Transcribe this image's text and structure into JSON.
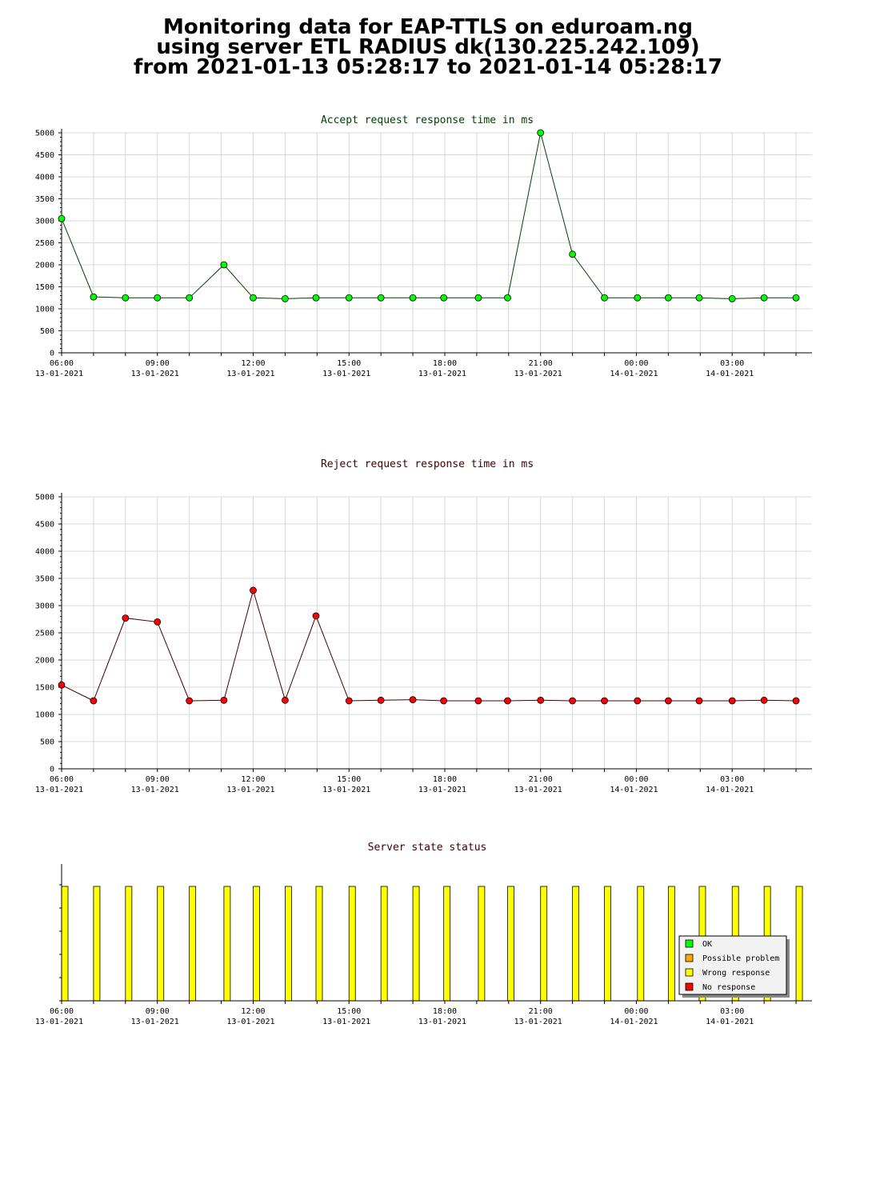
{
  "title": {
    "line1": "Monitoring data for EAP-TTLS on eduroam.ng",
    "line2": "using server ETL RADIUS dk(130.225.242.109)",
    "line3": "from 2021-01-13 05:28:17 to 2021-01-14 05:28:17"
  },
  "colors": {
    "accept_line": "#004000",
    "accept_marker": "#00ff00",
    "reject_line": "#400000",
    "reject_marker": "#ff0000",
    "status_bar": "#ffff00",
    "grid": "#d8d8d8"
  },
  "chart_data": [
    {
      "type": "line",
      "title": "Accept request response time in ms",
      "ylim": [
        0,
        5000
      ],
      "yticks": [
        0,
        500,
        1000,
        1500,
        2000,
        2500,
        3000,
        3500,
        4000,
        4500,
        5000
      ],
      "xlim": [
        "2021-01-13 06:00",
        "2021-01-14 05:30"
      ],
      "xticks": [
        {
          "time": "06:00",
          "date": "13-01-2021"
        },
        {
          "time": "09:00",
          "date": "13-01-2021"
        },
        {
          "time": "12:00",
          "date": "13-01-2021"
        },
        {
          "time": "15:00",
          "date": "13-01-2021"
        },
        {
          "time": "18:00",
          "date": "13-01-2021"
        },
        {
          "time": "21:00",
          "date": "13-01-2021"
        },
        {
          "time": "00:00",
          "date": "14-01-2021"
        },
        {
          "time": "03:00",
          "date": "14-01-2021"
        }
      ],
      "grid": true,
      "x": [
        "2021-01-13 06:00",
        "2021-01-13 07:00",
        "2021-01-13 08:00",
        "2021-01-13 09:00",
        "2021-01-13 10:00",
        "2021-01-13 11:05",
        "2021-01-13 12:00",
        "2021-01-13 13:00",
        "2021-01-13 13:58",
        "2021-01-13 15:00",
        "2021-01-13 16:00",
        "2021-01-13 17:00",
        "2021-01-13 17:58",
        "2021-01-13 19:03",
        "2021-01-13 19:58",
        "2021-01-13 21:00",
        "2021-01-13 22:00",
        "2021-01-13 23:00",
        "2021-01-14 00:02",
        "2021-01-14 01:00",
        "2021-01-14 01:58",
        "2021-01-14 03:00",
        "2021-01-14 04:00",
        "2021-01-14 05:00"
      ],
      "values": [
        3050,
        1270,
        1250,
        1250,
        1250,
        2000,
        1250,
        1230,
        1250,
        1250,
        1250,
        1250,
        1250,
        1250,
        1250,
        5000,
        2240,
        1250,
        1250,
        1250,
        1250,
        1230,
        1250,
        1250
      ]
    },
    {
      "type": "line",
      "title": "Reject request response time in ms",
      "ylim": [
        0,
        5000
      ],
      "yticks": [
        0,
        500,
        1000,
        1500,
        2000,
        2500,
        3000,
        3500,
        4000,
        4500,
        5000
      ],
      "xlim": [
        "2021-01-13 06:00",
        "2021-01-14 05:30"
      ],
      "xticks": [
        {
          "time": "06:00",
          "date": "13-01-2021"
        },
        {
          "time": "09:00",
          "date": "13-01-2021"
        },
        {
          "time": "12:00",
          "date": "13-01-2021"
        },
        {
          "time": "15:00",
          "date": "13-01-2021"
        },
        {
          "time": "18:00",
          "date": "13-01-2021"
        },
        {
          "time": "21:00",
          "date": "13-01-2021"
        },
        {
          "time": "00:00",
          "date": "14-01-2021"
        },
        {
          "time": "03:00",
          "date": "14-01-2021"
        }
      ],
      "grid": true,
      "x": [
        "2021-01-13 06:00",
        "2021-01-13 07:00",
        "2021-01-13 08:00",
        "2021-01-13 09:00",
        "2021-01-13 10:00",
        "2021-01-13 11:05",
        "2021-01-13 12:00",
        "2021-01-13 13:00",
        "2021-01-13 13:58",
        "2021-01-13 15:00",
        "2021-01-13 16:00",
        "2021-01-13 17:00",
        "2021-01-13 17:58",
        "2021-01-13 19:03",
        "2021-01-13 19:58",
        "2021-01-13 21:00",
        "2021-01-13 22:00",
        "2021-01-13 23:00",
        "2021-01-14 00:02",
        "2021-01-14 01:00",
        "2021-01-14 01:58",
        "2021-01-14 03:00",
        "2021-01-14 04:00",
        "2021-01-14 05:00"
      ],
      "values": [
        1540,
        1250,
        2770,
        2700,
        1250,
        1260,
        3280,
        1260,
        2810,
        1250,
        1260,
        1270,
        1250,
        1250,
        1250,
        1260,
        1250,
        1250,
        1250,
        1250,
        1250,
        1250,
        1260,
        1250
      ]
    },
    {
      "type": "bar",
      "title": "Server state status",
      "xlim": [
        "2021-01-13 06:00",
        "2021-01-14 05:30"
      ],
      "xticks": [
        {
          "time": "06:00",
          "date": "13-01-2021"
        },
        {
          "time": "09:00",
          "date": "13-01-2021"
        },
        {
          "time": "12:00",
          "date": "13-01-2021"
        },
        {
          "time": "15:00",
          "date": "13-01-2021"
        },
        {
          "time": "18:00",
          "date": "13-01-2021"
        },
        {
          "time": "21:00",
          "date": "13-01-2021"
        },
        {
          "time": "00:00",
          "date": "14-01-2021"
        },
        {
          "time": "03:00",
          "date": "14-01-2021"
        }
      ],
      "x": [
        "2021-01-13 06:00",
        "2021-01-13 07:00",
        "2021-01-13 08:00",
        "2021-01-13 09:00",
        "2021-01-13 10:00",
        "2021-01-13 11:05",
        "2021-01-13 12:00",
        "2021-01-13 13:00",
        "2021-01-13 13:58",
        "2021-01-13 15:00",
        "2021-01-13 16:00",
        "2021-01-13 17:00",
        "2021-01-13 17:58",
        "2021-01-13 19:03",
        "2021-01-13 19:58",
        "2021-01-13 21:00",
        "2021-01-13 22:00",
        "2021-01-13 23:00",
        "2021-01-14 00:02",
        "2021-01-14 01:00",
        "2021-01-14 01:58",
        "2021-01-14 03:00",
        "2021-01-14 04:00",
        "2021-01-14 05:00"
      ],
      "status": [
        "Wrong response",
        "Wrong response",
        "Wrong response",
        "Wrong response",
        "Wrong response",
        "Wrong response",
        "Wrong response",
        "Wrong response",
        "Wrong response",
        "Wrong response",
        "Wrong response",
        "Wrong response",
        "Wrong response",
        "Wrong response",
        "Wrong response",
        "Wrong response",
        "Wrong response",
        "Wrong response",
        "Wrong response",
        "Wrong response",
        "Wrong response",
        "Wrong response",
        "Wrong response",
        "Wrong response"
      ],
      "legend_position": "bottom-right",
      "legend": [
        {
          "label": "OK",
          "color": "#00ff00"
        },
        {
          "label": "Possible problem",
          "color": "#ffa500"
        },
        {
          "label": "Wrong response",
          "color": "#ffff00"
        },
        {
          "label": "No response",
          "color": "#ff0000"
        }
      ]
    }
  ]
}
